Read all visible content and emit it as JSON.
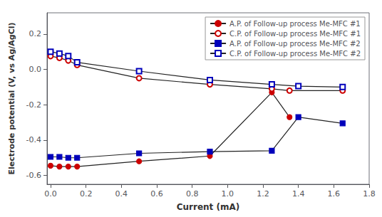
{
  "chart_data": {
    "type": "line",
    "xlabel": "Current (mA)",
    "ylabel": "Electrode potential (V, vs Ag/AgCl)",
    "xlim": [
      -0.02,
      1.8
    ],
    "ylim": [
      -0.65,
      0.32
    ],
    "xticks": [
      {
        "value": 0,
        "label": "0.0"
      },
      0.2,
      0.4,
      0.6,
      0.8,
      {
        "value": 1,
        "label": "1.0"
      },
      1.2,
      1.4,
      1.6,
      1.8
    ],
    "yticks": [
      -0.6,
      -0.4,
      -0.2,
      {
        "value": 0,
        "label": "0.0"
      },
      0.2
    ],
    "grid": false,
    "legend": "upper right",
    "color": "#222222",
    "series": [
      {
        "name": "A.P. of Follow-up process Me-MFC #1",
        "color": "#cc0000",
        "marker": "circle",
        "x": [
          0.0,
          0.05,
          0.1,
          0.15,
          0.5,
          0.9,
          1.25,
          1.35
        ],
        "values": [
          -0.545,
          -0.55,
          -0.55,
          -0.55,
          -0.52,
          -0.49,
          -0.13,
          -0.27
        ]
      },
      {
        "name": "C.P. of Follow-up process Me-MFC #1",
        "color": "#cc0000",
        "marker": "open_circle",
        "x": [
          0.0,
          0.05,
          0.1,
          0.15,
          0.5,
          0.9,
          1.25,
          1.35,
          1.65
        ],
        "values": [
          0.075,
          0.065,
          0.05,
          0.025,
          -0.05,
          -0.085,
          -0.11,
          -0.12,
          -0.12
        ]
      },
      {
        "name": "A.P. of Follow-up process Me-MFC #2",
        "color": "#0000bb",
        "marker": "square",
        "x": [
          0.0,
          0.05,
          0.1,
          0.15,
          0.5,
          0.9,
          1.25,
          1.4,
          1.65
        ],
        "values": [
          -0.495,
          -0.495,
          -0.5,
          -0.5,
          -0.475,
          -0.465,
          -0.46,
          -0.27,
          -0.305
        ]
      },
      {
        "name": "C.P. of Follow-up process Me-MFC #2",
        "color": "#0000bb",
        "marker": "open_square",
        "x": [
          0.0,
          0.05,
          0.1,
          0.15,
          0.5,
          0.9,
          1.25,
          1.4,
          1.65
        ],
        "values": [
          0.1,
          0.09,
          0.075,
          0.04,
          -0.01,
          -0.06,
          -0.085,
          -0.095,
          -0.1
        ]
      }
    ]
  }
}
